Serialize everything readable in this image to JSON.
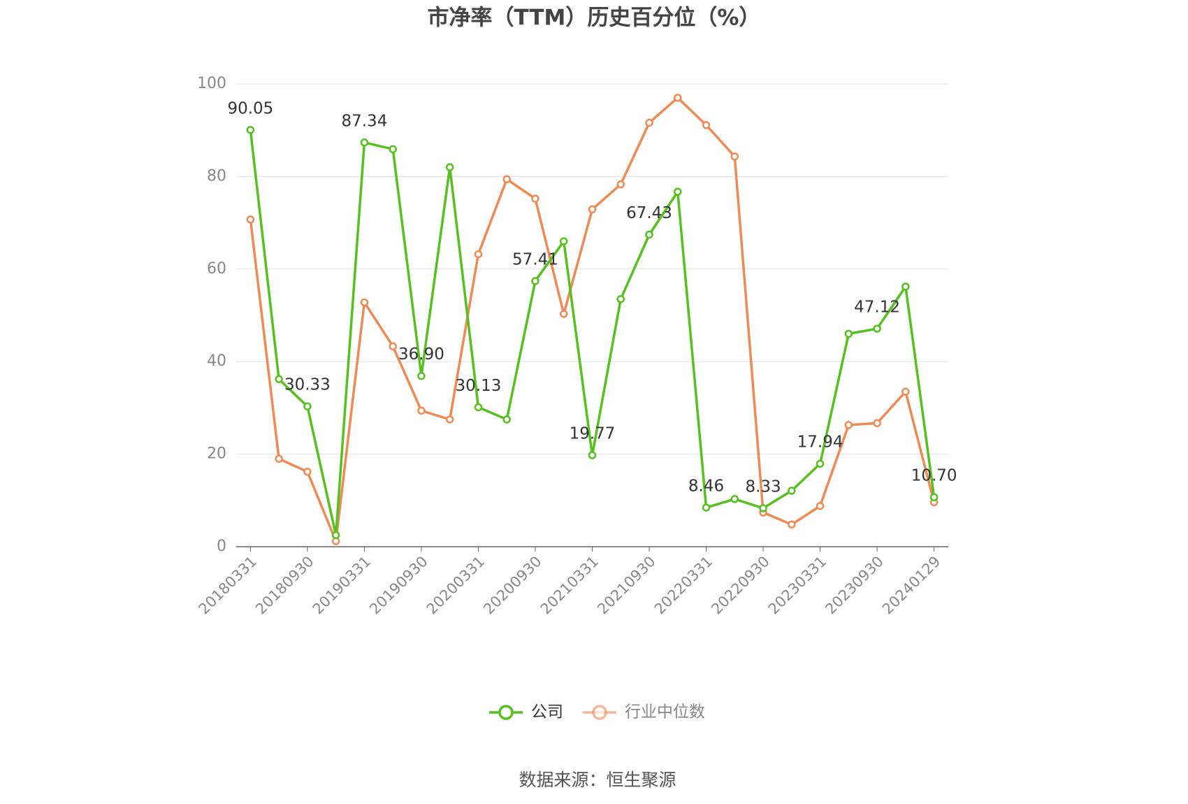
{
  "chart_data": {
    "type": "line",
    "title": "市净率（TTM）历史百分位（%）",
    "source": "数据来源：恒生聚源",
    "categories": [
      "20180331",
      null,
      "20180930",
      null,
      "20190331",
      null,
      "20190930",
      null,
      "20200331",
      null,
      "20200930",
      null,
      "20210331",
      null,
      "20210930",
      null,
      "20220331",
      null,
      "20220930",
      null,
      "20230331",
      null,
      "20230930",
      null,
      "20240129"
    ],
    "series": [
      {
        "name": "公司",
        "color": "#56c11e",
        "values": [
          90.05,
          36.2,
          30.33,
          2.5,
          87.34,
          85.9,
          36.9,
          82.0,
          30.13,
          27.5,
          57.41,
          66.0,
          19.77,
          53.5,
          67.43,
          76.7,
          8.46,
          10.3,
          8.33,
          12.1,
          17.94,
          46.0,
          47.12,
          56.2,
          10.7
        ],
        "value_labels": [
          "90.05",
          null,
          "30.33",
          null,
          "87.34",
          null,
          "36.90",
          null,
          "30.13",
          null,
          "57.41",
          null,
          "19.77",
          null,
          "67.43",
          null,
          "8.46",
          null,
          "8.33",
          null,
          "17.94",
          null,
          "47.12",
          null,
          "10.70"
        ]
      },
      {
        "name": "行业中位数",
        "color": "#f08a55",
        "values": [
          70.7,
          19.0,
          16.2,
          1.2,
          52.8,
          43.3,
          29.4,
          27.5,
          63.2,
          79.4,
          75.2,
          50.3,
          72.9,
          78.3,
          91.6,
          97.0,
          91.1,
          84.3,
          7.4,
          4.8,
          8.8,
          26.3,
          26.7,
          33.5,
          9.6
        ]
      }
    ],
    "ylim": [
      0,
      100
    ],
    "yticks": [
      0,
      20,
      40,
      60,
      80,
      100
    ],
    "grid": true
  }
}
